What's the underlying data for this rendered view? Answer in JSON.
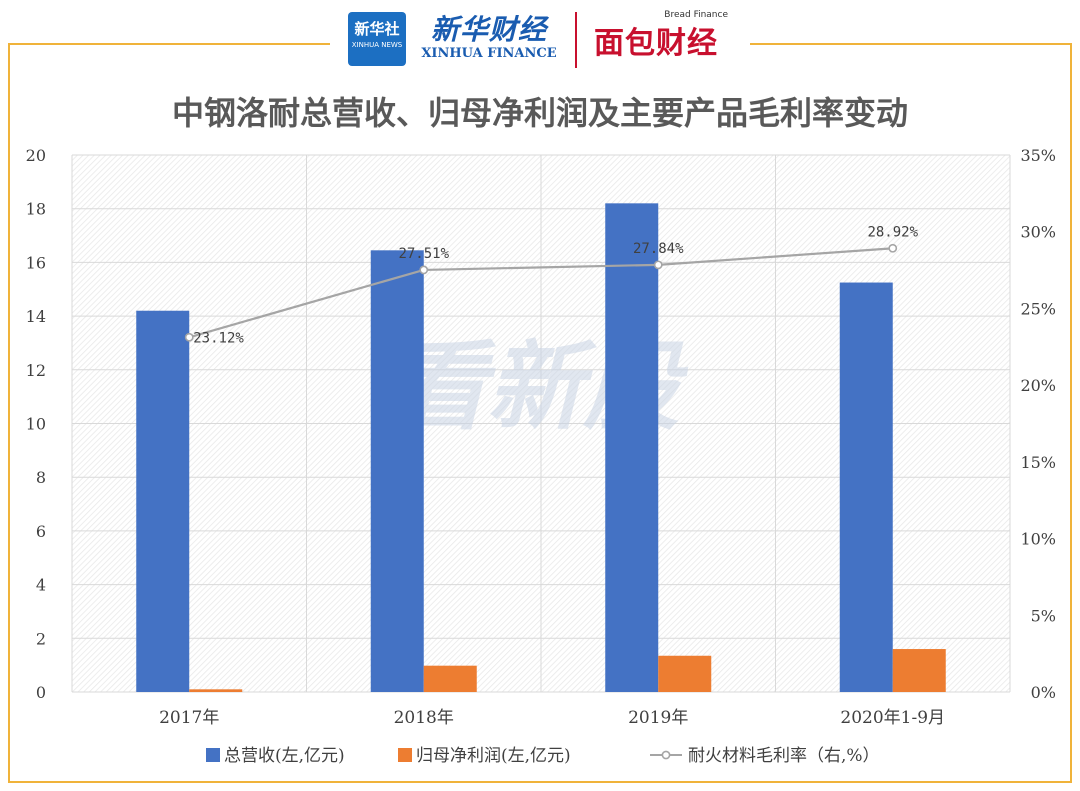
{
  "header": {
    "xinhua_square": "新华社",
    "xinhua_square_en": "XINHUA NEWS",
    "xinhua_finance_cn": "新华财经",
    "xinhua_finance_en": "XINHUA FINANCE",
    "bread_finance_en": "Bread Finance",
    "bread_finance_cn": "面包财经"
  },
  "watermark": "看新股",
  "colors": {
    "frame": "#f0b33a",
    "revenue": "#4472c4",
    "profit": "#ed7d31",
    "margin": "#a5a5a5",
    "title": "#595959",
    "axis_text": "#404040"
  },
  "chart_data": {
    "type": "bar",
    "title": "中钢洛耐总营收、归母净利润及主要产品毛利率变动",
    "categories": [
      "2017年",
      "2018年",
      "2019年",
      "2020年1-9月"
    ],
    "series": [
      {
        "name": "总营收(左,亿元)",
        "type": "bar",
        "axis": "left",
        "values": [
          14.2,
          16.45,
          18.2,
          15.25
        ]
      },
      {
        "name": "归母净利润(左,亿元)",
        "type": "bar",
        "axis": "left",
        "values": [
          0.1,
          0.98,
          1.35,
          1.6
        ]
      },
      {
        "name": "耐火材料毛利率（右,%）",
        "type": "line",
        "axis": "right",
        "values": [
          23.12,
          27.51,
          27.84,
          28.92
        ]
      }
    ],
    "data_labels": [
      "23.12%",
      "27.51%",
      "27.84%",
      "28.92%"
    ],
    "ylim_left": [
      0,
      20
    ],
    "ylim_right": [
      0,
      35
    ],
    "yticks_left": [
      "0",
      "2",
      "4",
      "6",
      "8",
      "10",
      "12",
      "14",
      "16",
      "18",
      "20"
    ],
    "yticks_right": [
      "0%",
      "5%",
      "10%",
      "15%",
      "20%",
      "25%",
      "30%",
      "35%"
    ],
    "grid": true,
    "legend_position": "bottom"
  }
}
